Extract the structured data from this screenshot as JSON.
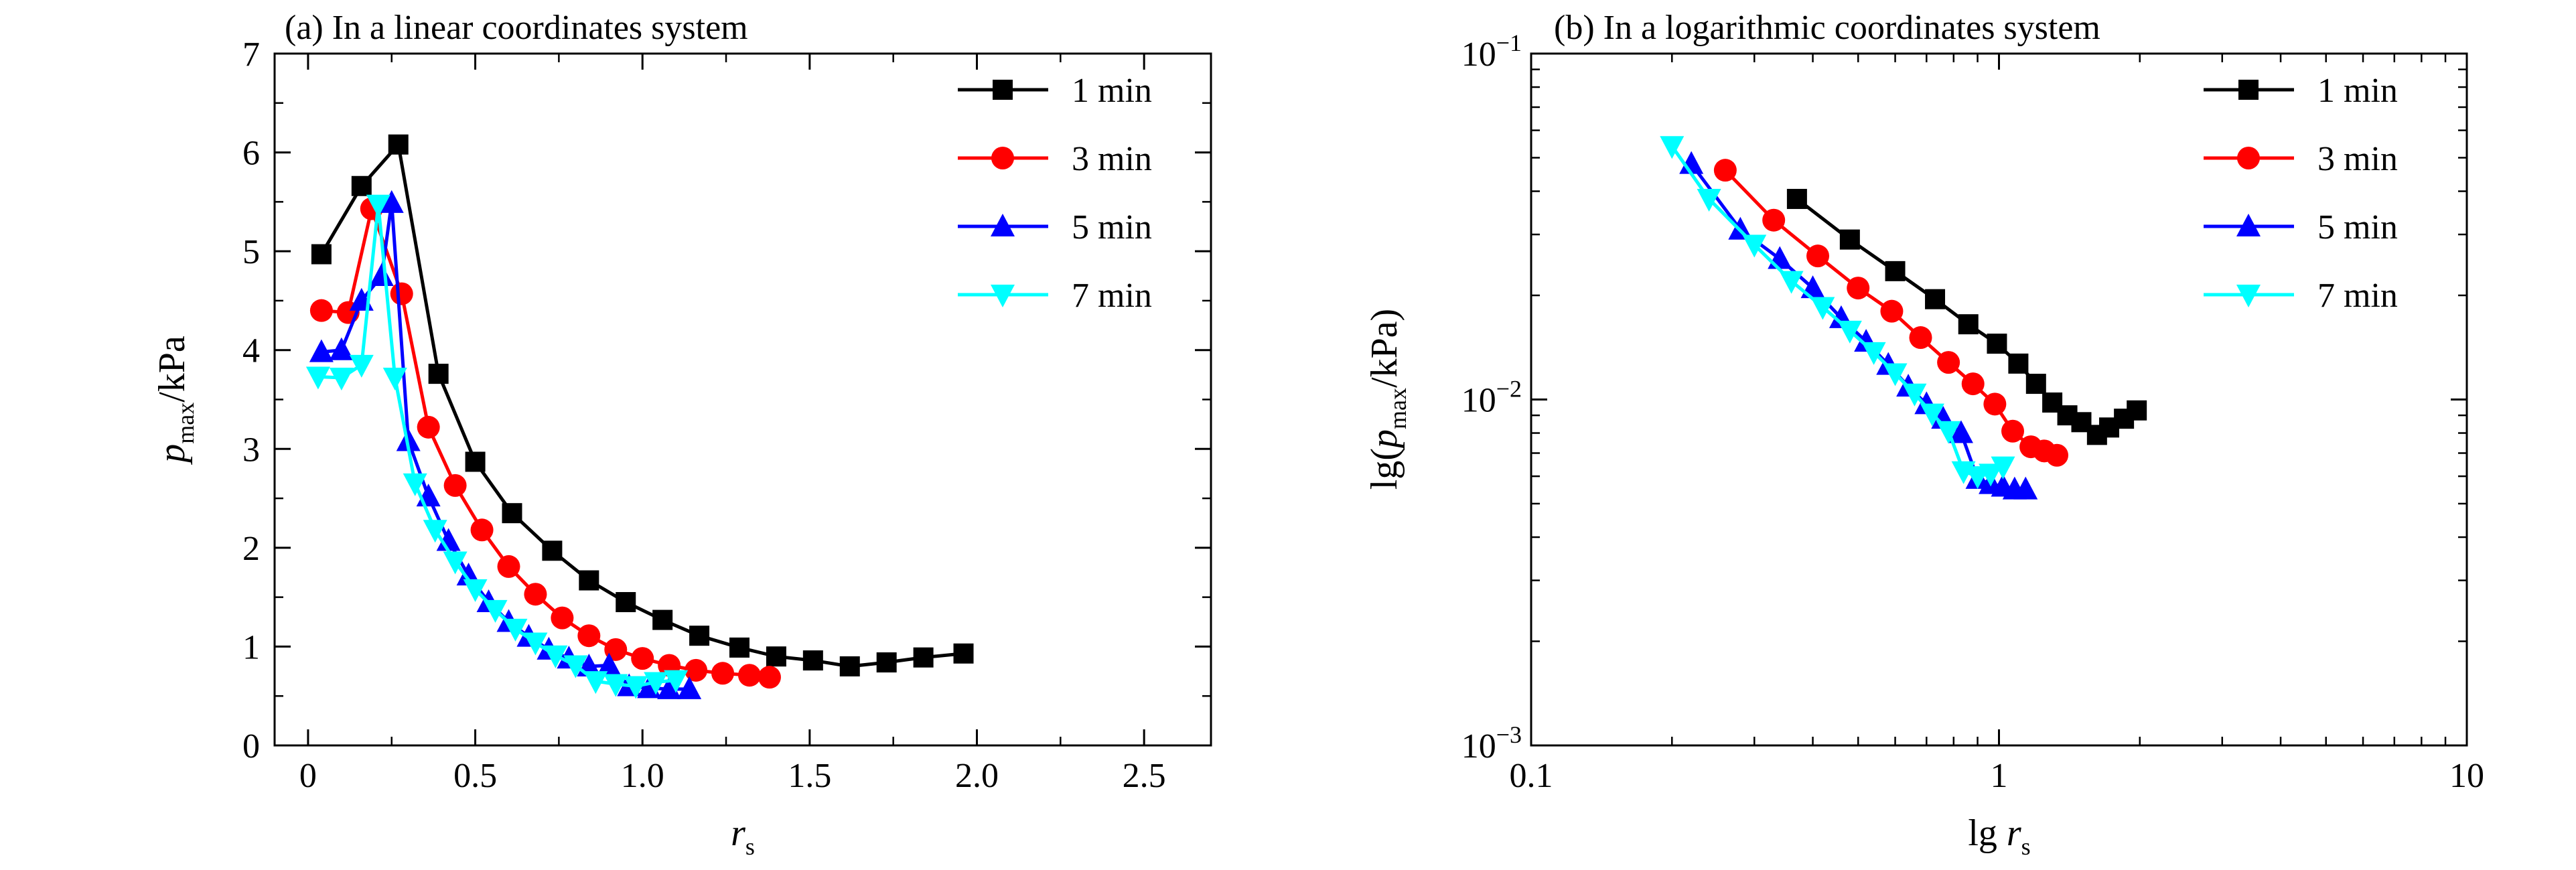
{
  "chart_data": [
    {
      "type": "line",
      "title": "(a) In a linear coordinates system",
      "xlabel": {
        "main": "r",
        "sub": "s"
      },
      "ylabel": {
        "main": "p",
        "sub": "max",
        "tail": "/kPa"
      },
      "xlim": [
        -0.1,
        2.7
      ],
      "ylim": [
        0,
        7
      ],
      "xticks": [
        0,
        0.5,
        1.0,
        1.5,
        2.0,
        2.5
      ],
      "xtick_labels": [
        "0",
        "0.5",
        "1.0",
        "1.5",
        "2.0",
        "2.5"
      ],
      "yticks": [
        0,
        1,
        2,
        3,
        4,
        5,
        6,
        7
      ],
      "ytick_labels": [
        "0",
        "1",
        "2",
        "3",
        "4",
        "5",
        "6",
        "7"
      ],
      "legend": "top-right",
      "grid": false,
      "series": [
        {
          "name": "1 min",
          "color": "#000000",
          "marker": "square",
          "x": [
            0.04,
            0.16,
            0.27,
            0.39,
            0.5,
            0.61,
            0.73,
            0.84,
            0.95,
            1.06,
            1.17,
            1.29,
            1.4,
            1.51,
            1.62,
            1.73,
            1.84,
            1.96
          ],
          "y": [
            4.97,
            5.66,
            6.08,
            3.76,
            2.87,
            2.35,
            1.97,
            1.67,
            1.45,
            1.27,
            1.11,
            0.99,
            0.9,
            0.86,
            0.8,
            0.84,
            0.89,
            0.93
          ]
        },
        {
          "name": "3 min",
          "color": "#ff0000",
          "marker": "circle",
          "x": [
            0.04,
            0.12,
            0.19,
            0.28,
            0.36,
            0.44,
            0.52,
            0.6,
            0.68,
            0.76,
            0.84,
            0.92,
            1.0,
            1.08,
            1.16,
            1.24,
            1.32,
            1.38
          ],
          "y": [
            4.4,
            4.38,
            5.43,
            4.57,
            3.22,
            2.63,
            2.18,
            1.81,
            1.53,
            1.29,
            1.11,
            0.97,
            0.88,
            0.81,
            0.76,
            0.73,
            0.71,
            0.69
          ]
        },
        {
          "name": "5 min",
          "color": "#0000ff",
          "marker": "triangle-up",
          "x": [
            0.04,
            0.1,
            0.16,
            0.22,
            0.25,
            0.3,
            0.36,
            0.42,
            0.48,
            0.54,
            0.6,
            0.66,
            0.72,
            0.78,
            0.84,
            0.9,
            0.96,
            1.02,
            1.08,
            1.14
          ],
          "y": [
            3.98,
            4.0,
            4.5,
            4.75,
            5.49,
            3.08,
            2.52,
            2.07,
            1.72,
            1.45,
            1.25,
            1.1,
            0.97,
            0.88,
            0.8,
            0.81,
            0.6,
            0.58,
            0.57,
            0.57
          ]
        },
        {
          "name": "7 min",
          "color": "#00ffff",
          "marker": "triangle-down",
          "x": [
            0.03,
            0.1,
            0.16,
            0.21,
            0.26,
            0.32,
            0.38,
            0.44,
            0.5,
            0.56,
            0.62,
            0.68,
            0.74,
            0.8,
            0.86,
            0.92,
            0.98,
            1.04,
            1.1
          ],
          "y": [
            3.73,
            3.72,
            3.85,
            5.47,
            3.72,
            2.65,
            2.18,
            1.86,
            1.58,
            1.37,
            1.18,
            1.04,
            0.91,
            0.81,
            0.65,
            0.62,
            0.6,
            0.64,
            0.66
          ]
        }
      ]
    },
    {
      "type": "line",
      "title": "(b) In a logarithmic coordinates system",
      "xlabel": {
        "main": "lg r",
        "sub": "s"
      },
      "ylabel": {
        "main": "lg(p",
        "sub": "max",
        "tail": "/kPa)"
      },
      "xscale": "log",
      "yscale": "log",
      "xlim": [
        0.1,
        10
      ],
      "ylim": [
        0.001,
        0.1
      ],
      "xticks": [
        0.1,
        1,
        10
      ],
      "xtick_labels": [
        "0.1",
        "1",
        "10"
      ],
      "yticks": [
        0.001,
        0.01,
        0.1
      ],
      "ytick_labels": [
        {
          "base": "10",
          "exp": "-3"
        },
        {
          "base": "10",
          "exp": "-2"
        },
        {
          "base": "10",
          "exp": "-1"
        }
      ],
      "legend": "top-right",
      "grid": false,
      "series": [
        {
          "name": "1 min",
          "color": "#000000",
          "marker": "square",
          "x": [
            0.37,
            0.48,
            0.6,
            0.73,
            0.86,
            0.99,
            1.1,
            1.2,
            1.3,
            1.4,
            1.5,
            1.62,
            1.72,
            1.85,
            1.97
          ],
          "y": [
            0.038,
            0.029,
            0.0235,
            0.0195,
            0.0165,
            0.0145,
            0.0127,
            0.0111,
            0.0098,
            0.009,
            0.0086,
            0.0079,
            0.0083,
            0.0088,
            0.0093
          ]
        },
        {
          "name": "3 min",
          "color": "#ff0000",
          "marker": "circle",
          "x": [
            0.26,
            0.33,
            0.41,
            0.5,
            0.59,
            0.68,
            0.78,
            0.88,
            0.98,
            1.07,
            1.17,
            1.25,
            1.33
          ],
          "y": [
            0.046,
            0.033,
            0.026,
            0.021,
            0.018,
            0.0151,
            0.0128,
            0.0111,
            0.0097,
            0.0081,
            0.0073,
            0.0071,
            0.0069
          ]
        },
        {
          "name": "5 min",
          "color": "#0000ff",
          "marker": "triangle-up",
          "x": [
            0.22,
            0.28,
            0.34,
            0.4,
            0.46,
            0.52,
            0.58,
            0.64,
            0.7,
            0.76,
            0.83,
            0.9,
            0.96,
            1.02,
            1.08,
            1.14
          ],
          "y": [
            0.048,
            0.031,
            0.0255,
            0.021,
            0.0172,
            0.0147,
            0.0126,
            0.0109,
            0.0097,
            0.0088,
            0.008,
            0.0059,
            0.0057,
            0.0056,
            0.0055,
            0.0055
          ]
        },
        {
          "name": "7 min",
          "color": "#00ffff",
          "marker": "triangle-down",
          "x": [
            0.2,
            0.24,
            0.3,
            0.36,
            0.42,
            0.48,
            0.54,
            0.6,
            0.66,
            0.72,
            0.78,
            0.84,
            0.9,
            0.96,
            1.02
          ],
          "y": [
            0.054,
            0.038,
            0.028,
            0.022,
            0.0185,
            0.0158,
            0.0137,
            0.0119,
            0.0104,
            0.0091,
            0.0081,
            0.0062,
            0.006,
            0.0061,
            0.0064
          ]
        }
      ]
    }
  ]
}
